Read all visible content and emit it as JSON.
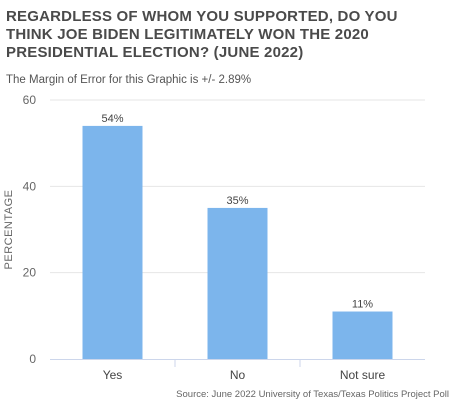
{
  "chart_data": {
    "type": "bar",
    "title": "REGARDLESS OF WHOM YOU SUPPORTED, DO YOU THINK JOE BIDEN LEGITIMATELY WON THE 2020 PRESIDENTIAL ELECTION? (JUNE 2022)",
    "subtitle": "The Margin of Error for this Graphic is +/- 2.89%",
    "categories": [
      "Yes",
      "No",
      "Not sure"
    ],
    "values": [
      54,
      35,
      11
    ],
    "data_labels": [
      "54%",
      "35%",
      "11%"
    ],
    "xlabel": "",
    "ylabel": "PERCENTAGE",
    "ylim": [
      0,
      60
    ],
    "yticks": [
      0,
      20,
      40,
      60
    ],
    "ytick_labels": [
      "0",
      "20",
      "40",
      "60"
    ],
    "grid": true,
    "bar_color": "#7cb5ec",
    "source": "Source: June 2022 University of Texas/Texas Politics Project Poll"
  }
}
